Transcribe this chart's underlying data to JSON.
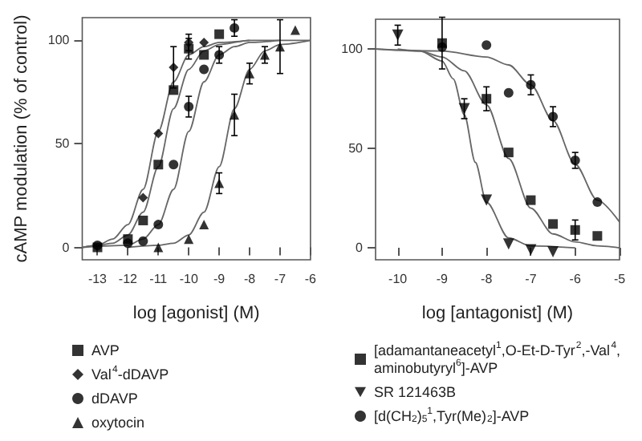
{
  "chart_data": [
    {
      "type": "scatter",
      "xlabel": "log [agonist] (M)",
      "ylabel": "cAMP modulation (% of control)",
      "xlim": [
        -13.5,
        -6
      ],
      "xticks": [
        -13,
        -12,
        -11,
        -10,
        -9,
        -8,
        -7,
        -6
      ],
      "ylim": [
        -6,
        111
      ],
      "yticks": [
        0,
        50,
        100
      ],
      "grid": false,
      "legend": "bottom",
      "series": [
        {
          "name": "AVP",
          "marker": "square",
          "color": "#000000",
          "x": [
            -13,
            -12,
            -11.5,
            -11,
            -10.5,
            -10,
            -9.5,
            -9
          ],
          "values": [
            0,
            4,
            13,
            40,
            76,
            96,
            93,
            103
          ],
          "errors": [
            null,
            null,
            null,
            null,
            null,
            5,
            null,
            null
          ]
        },
        {
          "name": "Val$^{4}$-dDAVP",
          "marker": "diamond",
          "color": "#000000",
          "x": [
            -11.5,
            -11,
            -10.5,
            -10,
            -9.5
          ],
          "values": [
            24,
            55,
            87,
            99,
            99
          ],
          "errors": [
            null,
            null,
            10,
            4,
            null
          ]
        },
        {
          "name": "dDAVP",
          "marker": "circle",
          "color": "#000000",
          "x": [
            -13,
            -12,
            -11.5,
            -11,
            -10.5,
            -10,
            -9.5,
            -9,
            -8.5
          ],
          "values": [
            1,
            2,
            3,
            11,
            40,
            68,
            86,
            93,
            106
          ],
          "errors": [
            null,
            null,
            null,
            null,
            null,
            5,
            null,
            4,
            4
          ]
        },
        {
          "name": "oxytocin",
          "marker": "triangle",
          "color": "#000000",
          "x": [
            -11,
            -10,
            -9.5,
            -9,
            -8.5,
            -8,
            -7.5,
            -7,
            -6.5
          ],
          "values": [
            0,
            4,
            11,
            31,
            64,
            84,
            93,
            97,
            105
          ],
          "errors": [
            null,
            null,
            null,
            5,
            10,
            5,
            4,
            13,
            null
          ]
        },
        {
          "type": "line",
          "marker": "none",
          "color": "#666666",
          "x": [
            -13.5,
            -13,
            -12.5,
            -12,
            -11.5,
            -11,
            -10.5,
            -10,
            -9.5,
            -9,
            -8
          ],
          "values": [
            0,
            1,
            4,
            11,
            28,
            56,
            80,
            93,
            97,
            99,
            100
          ]
        },
        {
          "type": "line",
          "marker": "none",
          "color": "#666666",
          "x": [
            -13.5,
            -13,
            -12.5,
            -12,
            -11.5,
            -11,
            -10.5,
            -10,
            -9.5,
            -9,
            -8,
            -6
          ],
          "values": [
            0,
            1,
            2,
            6,
            17,
            39,
            67,
            86,
            95,
            98,
            100,
            100
          ]
        },
        {
          "type": "line",
          "marker": "none",
          "color": "#666666",
          "x": [
            -13.5,
            -12,
            -11.5,
            -11,
            -10.5,
            -10,
            -9.5,
            -9,
            -8.5,
            -8,
            -7
          ],
          "values": [
            0,
            1,
            4,
            11,
            28,
            56,
            80,
            93,
            97,
            99,
            100
          ]
        },
        {
          "type": "line",
          "marker": "none",
          "color": "#666666",
          "x": [
            -12,
            -11,
            -10.5,
            -10,
            -9.5,
            -9,
            -8.5,
            -8,
            -7.5,
            -7,
            -6
          ],
          "values": [
            0,
            1,
            2,
            6,
            17,
            39,
            67,
            86,
            95,
            98,
            100
          ]
        }
      ]
    },
    {
      "type": "scatter",
      "xlabel": "log [antagonist] (M)",
      "xlim": [
        -10.5,
        -5
      ],
      "xticks": [
        -10,
        -9,
        -8,
        -7,
        -6,
        -5
      ],
      "ylim": [
        -6,
        115
      ],
      "yticks": [
        0,
        50,
        100
      ],
      "grid": false,
      "legend": "bottom",
      "series": [
        {
          "name": "[adamantaneacetyl$^{1}$,O-Et-D-Tyr$^{2}$,-Val$^{4}$,aminobutyryl$^{6}$]-AVP",
          "marker": "square",
          "color": "#000000",
          "x": [
            -9,
            -8,
            -7.5,
            -7,
            -6.5,
            -6,
            -5.5
          ],
          "values": [
            103,
            75,
            48,
            24,
            12,
            9,
            6
          ],
          "errors": [
            13,
            6,
            null,
            null,
            null,
            5,
            null
          ]
        },
        {
          "name": "SR 121463B",
          "marker": "triangle-down",
          "color": "#000000",
          "x": [
            -10,
            -8.5,
            -8,
            -7.5,
            -7,
            -6.5
          ],
          "values": [
            107,
            70,
            24,
            2,
            -1,
            -2
          ],
          "errors": [
            5,
            5,
            null,
            null,
            null,
            null
          ]
        },
        {
          "name": "[d(CH$_{2}$)$_{5}$$^{1}$,Tyr(Me)$_{2}$]-AVP",
          "marker": "circle",
          "color": "#000000",
          "x": [
            -9,
            -8,
            -7.5,
            -7,
            -6.5,
            -6,
            -5.5
          ],
          "values": [
            101,
            102,
            78,
            82,
            66,
            44,
            23
          ],
          "errors": [
            null,
            null,
            null,
            5,
            5,
            4,
            null
          ]
        },
        {
          "type": "line",
          "marker": "none",
          "color": "#666666",
          "x": [
            -10.5,
            -9.5,
            -9,
            -8.5,
            -8,
            -7.5,
            -7,
            -6.5,
            -6,
            -5.5,
            -5
          ],
          "values": [
            100,
            99,
            96,
            89,
            72,
            45,
            20,
            7,
            3,
            1,
            0
          ]
        },
        {
          "type": "line",
          "marker": "none",
          "color": "#666666",
          "x": [
            -10,
            -9.5,
            -9,
            -8.75,
            -8.5,
            -8.25,
            -8,
            -7.5,
            -7,
            -6
          ],
          "values": [
            100,
            99,
            94,
            85,
            67,
            43,
            23,
            5,
            1,
            0
          ]
        },
        {
          "type": "line",
          "marker": "none",
          "color": "#666666",
          "x": [
            -10.5,
            -9,
            -8,
            -7.5,
            -7,
            -6.5,
            -6,
            -5.5,
            -5
          ],
          "values": [
            100,
            99,
            96,
            92,
            82,
            64,
            42,
            24,
            13
          ]
        }
      ]
    }
  ]
}
